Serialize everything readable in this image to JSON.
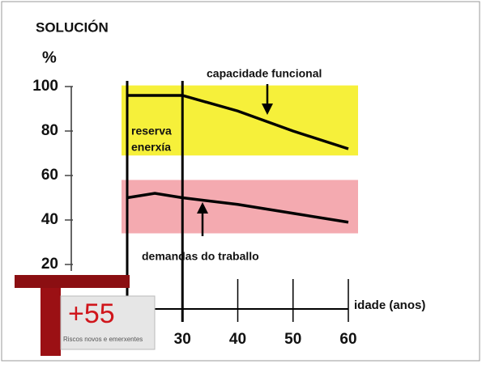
{
  "chart_data": {
    "type": "line",
    "title": "SOLUCIÓN",
    "y_label": "%",
    "x_label": "idade (anos)",
    "xlim": [
      20,
      60
    ],
    "xticks": [
      30,
      40,
      50,
      60
    ],
    "ylim": [
      0,
      100
    ],
    "yticks": [
      20,
      40,
      60,
      80,
      100
    ],
    "bands": [
      {
        "color": "#f6f03a",
        "range": [
          69,
          100.5
        ]
      },
      {
        "color": "#f4aab0",
        "range": [
          34,
          58
        ]
      }
    ],
    "series": [
      {
        "name": "capacidade funcional",
        "color": "#000000",
        "x": [
          20,
          30,
          40,
          50,
          60
        ],
        "values": [
          96,
          96,
          89,
          80,
          72
        ]
      },
      {
        "name": "demandas do traballo",
        "color": "#000000",
        "x": [
          20,
          25,
          30,
          40,
          50,
          60
        ],
        "values": [
          50,
          52,
          50,
          47,
          43,
          39
        ]
      }
    ],
    "annotations": [
      "reserva",
      "enerxía"
    ]
  },
  "logo": {
    "number": "+55",
    "caption": "Riscos novos e emerxentes"
  }
}
